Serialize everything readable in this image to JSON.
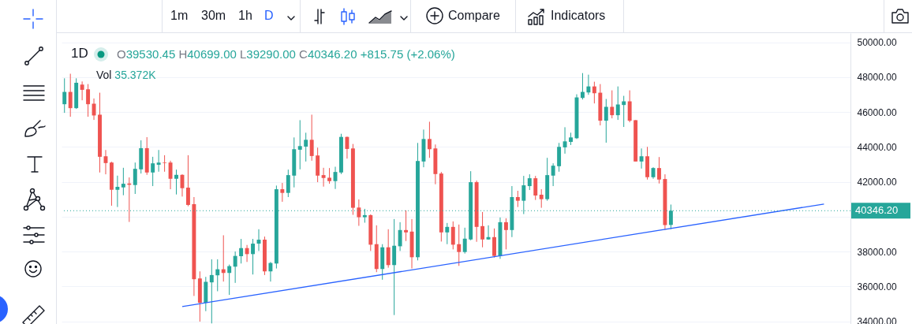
{
  "chart_data": {
    "type": "candlestick",
    "title": "1D",
    "subtitle": "O39530.45 H40699.00 L39290.00 C40346.20 +815.75 (+2.06%)",
    "annotations": [
      "Vol 35.372K",
      "1m",
      "30m",
      "1h",
      "D",
      "Compare",
      "Indicators"
    ],
    "categories": [
      null,
      null,
      null,
      null,
      null,
      null,
      null,
      null,
      null,
      null,
      null,
      null,
      null,
      null,
      null,
      null,
      null,
      null,
      null,
      null,
      null,
      null,
      null,
      null,
      null,
      null,
      null,
      null,
      null,
      null,
      null,
      null,
      null,
      null,
      null,
      null,
      null,
      null,
      null,
      null,
      null,
      null,
      null,
      null,
      null,
      null,
      null,
      null,
      null,
      null,
      null,
      null,
      null,
      null,
      null,
      null,
      null,
      null,
      null,
      null,
      null,
      null,
      null,
      null,
      null,
      null,
      null,
      null,
      null,
      null,
      null,
      null,
      null,
      null,
      null,
      null,
      null,
      null,
      null,
      null,
      null,
      null,
      null,
      null,
      null,
      null,
      null,
      null,
      null,
      null,
      null,
      null,
      null,
      null,
      null,
      null,
      null,
      null,
      null,
      null,
      null,
      null,
      null,
      null,
      null,
      null,
      null,
      null,
      null,
      null,
      null,
      null,
      null,
      null,
      null,
      null,
      null,
      null,
      null,
      null,
      null,
      null,
      null,
      null,
      null,
      null,
      null,
      null,
      null,
      null,
      null,
      null,
      null,
      null
    ],
    "ohlc": [
      [
        46453,
        47938,
        45958,
        47158
      ],
      [
        47158,
        48200,
        45733,
        46228
      ],
      [
        46228,
        47938,
        46183,
        47683
      ],
      [
        47578,
        47758,
        46678,
        47278
      ],
      [
        47308,
        47608,
        45733,
        46453
      ],
      [
        46483,
        46783,
        45553,
        45808
      ],
      [
        45853,
        47113,
        42538,
        43438
      ],
      [
        43468,
        43828,
        42433,
        43078
      ],
      [
        43108,
        43153,
        40633,
        41548
      ],
      [
        41548,
        42358,
        40558,
        41713
      ],
      [
        41683,
        42808,
        41233,
        41893
      ],
      [
        41908,
        42253,
        39703,
        41833
      ],
      [
        41818,
        43108,
        41308,
        42748
      ],
      [
        42718,
        44383,
        42478,
        43933
      ],
      [
        43933,
        44563,
        42403,
        42538
      ],
      [
        42538,
        43438,
        41758,
        43063
      ],
      [
        42983,
        43828,
        42583,
        43108
      ],
      [
        43108,
        43528,
        42583,
        43078
      ],
      [
        43108,
        43213,
        41578,
        42178
      ],
      [
        42178,
        42703,
        41278,
        42403
      ],
      [
        42403,
        42433,
        41158,
        41638
      ],
      [
        41668,
        43528,
        40603,
        40678
      ],
      [
        40723,
        41128,
        35458,
        36418
      ],
      [
        36463,
        36868,
        33988,
        35068
      ],
      [
        35068,
        36553,
        34588,
        36268
      ],
      [
        36238,
        37558,
        33883,
        36658
      ],
      [
        36643,
        37558,
        35728,
        36988
      ],
      [
        36988,
        38938,
        36283,
        36778
      ],
      [
        36778,
        37258,
        35518,
        37168
      ],
      [
        37138,
        38008,
        36208,
        37753
      ],
      [
        37738,
        38728,
        37318,
        38203
      ],
      [
        38203,
        38383,
        37408,
        37858
      ],
      [
        37858,
        38728,
        36688,
        38458
      ],
      [
        38458,
        39283,
        38038,
        38683
      ],
      [
        38683,
        38863,
        36658,
        36868
      ],
      [
        36868,
        37408,
        36283,
        37348
      ],
      [
        37318,
        41788,
        37033,
        41578
      ],
      [
        41578,
        41938,
        40858,
        41368
      ],
      [
        41368,
        42703,
        41128,
        42388
      ],
      [
        42358,
        44548,
        41683,
        43873
      ],
      [
        43843,
        45538,
        42718,
        44053
      ],
      [
        44023,
        44818,
        43168,
        44413
      ],
      [
        44413,
        45853,
        43213,
        43483
      ],
      [
        43513,
        43963,
        41983,
        42358
      ],
      [
        42388,
        42808,
        41728,
        42223
      ],
      [
        42238,
        42793,
        41893,
        42043
      ],
      [
        42043,
        42868,
        41593,
        42568
      ],
      [
        42538,
        44758,
        42448,
        44578
      ],
      [
        44578,
        44593,
        43333,
        43888
      ],
      [
        43918,
        44173,
        40108,
        40513
      ],
      [
        40528,
        40993,
        39478,
        39973
      ],
      [
        39973,
        40453,
        39658,
        40093
      ],
      [
        40093,
        40138,
        38038,
        38398
      ],
      [
        38428,
        39508,
        36823,
        37003
      ],
      [
        37003,
        38428,
        36388,
        38248
      ],
      [
        38248,
        39283,
        37078,
        37228
      ],
      [
        37228,
        39868,
        34363,
        38338
      ],
      [
        38308,
        39688,
        38038,
        39238
      ],
      [
        39238,
        40363,
        38608,
        39103
      ],
      [
        39148,
        39868,
        37033,
        37678
      ],
      [
        37678,
        44233,
        37498,
        43198
      ],
      [
        43168,
        44998,
        42838,
        44458
      ],
      [
        44458,
        45448,
        43378,
        43873
      ],
      [
        43918,
        44143,
        41863,
        42448
      ],
      [
        42478,
        42568,
        38578,
        39103
      ],
      [
        39103,
        39643,
        38428,
        39418
      ],
      [
        39418,
        39733,
        38128,
        38398
      ],
      [
        38428,
        39553,
        37183,
        37978
      ],
      [
        37978,
        39373,
        37888,
        38743
      ],
      [
        38698,
        42613,
        38650,
        41983
      ],
      [
        41983,
        42073,
        38563,
        39418
      ],
      [
        39463,
        40273,
        38248,
        38698
      ],
      [
        38698,
        39508,
        38680,
        38833
      ],
      [
        38833,
        39328,
        37663,
        37753
      ],
      [
        37753,
        39958,
        37588,
        39688
      ],
      [
        39688,
        39913,
        38128,
        39238
      ],
      [
        39238,
        41758,
        38833,
        41128
      ],
      [
        41128,
        41488,
        40558,
        40918
      ],
      [
        40918,
        42343,
        40153,
        41803
      ],
      [
        41758,
        42433,
        41533,
        42208
      ],
      [
        42208,
        42343,
        40963,
        41218
      ],
      [
        41263,
        41578,
        40513,
        41008
      ],
      [
        41008,
        43378,
        40918,
        42388
      ],
      [
        42358,
        43063,
        41758,
        42928
      ],
      [
        42898,
        44233,
        42583,
        44008
      ],
      [
        43978,
        45133,
        43618,
        44323
      ],
      [
        44293,
        44818,
        44113,
        44548
      ],
      [
        44503,
        47023,
        44458,
        46843
      ],
      [
        46813,
        48238,
        46723,
        47158
      ],
      [
        47128,
        48148,
        46993,
        47473
      ],
      [
        47473,
        47743,
        46498,
        47083
      ],
      [
        47113,
        47608,
        45238,
        45508
      ],
      [
        45508,
        46753,
        44248,
        46303
      ],
      [
        46303,
        47248,
        45643,
        45823
      ],
      [
        45823,
        47473,
        45553,
        46438
      ],
      [
        46408,
        46933,
        45148,
        46618
      ],
      [
        46618,
        47248,
        45418,
        45508
      ],
      [
        45538,
        45538,
        43168,
        43168
      ],
      [
        43168,
        43918,
        42763,
        43468
      ],
      [
        43468,
        44008,
        42133,
        42268
      ],
      [
        42268,
        42838,
        42178,
        42793
      ],
      [
        42793,
        43423,
        41908,
        42133
      ],
      [
        42163,
        42433,
        39253,
        39523
      ],
      [
        39530.45,
        40699,
        39290,
        40346.2
      ],
      null,
      null,
      null,
      null,
      null,
      null,
      null,
      null,
      null,
      null,
      null,
      null,
      null,
      null,
      null,
      null,
      null,
      null,
      null,
      null,
      null,
      null,
      null,
      null,
      null,
      null,
      null,
      null,
      null,
      null
    ],
    "colors": [
      "#26a69a",
      "#ef5350",
      "#26a69a",
      "#ef5350",
      "#ef5350",
      "#ef5350",
      "#ef5350",
      "#ef5350",
      "#ef5350",
      "#26a69a",
      "#26a69a",
      "#ef5350",
      "#26a69a",
      "#26a69a",
      "#ef5350",
      "#26a69a",
      "#26a69a",
      "#ef5350",
      "#ef5350",
      "#26a69a",
      "#ef5350",
      "#ef5350",
      "#ef5350",
      "#ef5350",
      "#26a69a",
      "#26a69a",
      "#26a69a",
      "#ef5350",
      "#26a69a",
      "#26a69a",
      "#26a69a",
      "#ef5350",
      "#26a69a",
      "#26a69a",
      "#ef5350",
      "#26a69a",
      "#26a69a",
      "#ef5350",
      "#26a69a",
      "#26a69a",
      "#26a69a",
      "#26a69a",
      "#ef5350",
      "#ef5350",
      "#ef5350",
      "#ef5350",
      "#26a69a",
      "#26a69a",
      "#ef5350",
      "#ef5350",
      "#ef5350",
      "#26a69a",
      "#ef5350",
      "#ef5350",
      "#26a69a",
      "#ef5350",
      "#26a69a",
      "#26a69a",
      "#ef5350",
      "#ef5350",
      "#26a69a",
      "#26a69a",
      "#ef5350",
      "#ef5350",
      "#ef5350",
      "#26a69a",
      "#ef5350",
      "#ef5350",
      "#26a69a",
      "#26a69a",
      "#ef5350",
      "#ef5350",
      "#26a69a",
      "#ef5350",
      "#26a69a",
      "#ef5350",
      "#26a69a",
      "#ef5350",
      "#26a69a",
      "#26a69a",
      "#ef5350",
      "#ef5350",
      "#26a69a",
      "#26a69a",
      "#26a69a",
      "#26a69a",
      "#26a69a",
      "#26a69a",
      "#26a69a",
      "#26a69a",
      "#ef5350",
      "#ef5350",
      "#26a69a",
      "#ef5350",
      "#26a69a",
      "#26a69a",
      "#ef5350",
      "#ef5350",
      "#26a69a",
      "#ef5350",
      "#26a69a",
      "#ef5350",
      "#ef5350",
      "#26a69a",
      null,
      null,
      null,
      null,
      null,
      null,
      null,
      null,
      null,
      null,
      null,
      null,
      null,
      null,
      null,
      null,
      null,
      null,
      null,
      null,
      null,
      null,
      null,
      null,
      null,
      null,
      null,
      null,
      null,
      null
    ],
    "series": [
      {
        "type": "line",
        "color": "#2962ff",
        "values": [
          null,
          null,
          null,
          null,
          null,
          null,
          null,
          null,
          null,
          null,
          null,
          null,
          null,
          null,
          null,
          null,
          null,
          null,
          null,
          null,
          34850,
          null,
          null,
          null,
          null,
          null,
          null,
          null,
          null,
          null,
          null,
          null,
          null,
          null,
          null,
          null,
          null,
          null,
          null,
          null,
          null,
          null,
          null,
          null,
          null,
          null,
          null,
          null,
          null,
          null,
          null,
          null,
          null,
          null,
          null,
          null,
          null,
          null,
          null,
          null,
          null,
          null,
          null,
          null,
          null,
          null,
          null,
          null,
          null,
          null,
          null,
          null,
          null,
          null,
          null,
          null,
          null,
          null,
          null,
          null,
          null,
          null,
          null,
          null,
          null,
          null,
          null,
          null,
          null,
          null,
          null,
          null,
          null,
          null,
          null,
          null,
          null,
          null,
          null,
          null,
          null,
          null,
          null,
          null,
          null,
          null,
          null,
          null,
          null,
          null,
          null,
          null,
          null,
          null,
          null,
          null,
          null,
          null,
          null,
          null,
          null,
          null,
          null,
          null,
          null,
          null,
          null,
          null,
          null,
          40730,
          null,
          null,
          null,
          null
        ]
      }
    ],
    "ylim": [
      33850,
      50530
    ],
    "yticks": [
      {
        "value": 34000,
        "label": "34000.00"
      },
      {
        "value": 36000,
        "label": "36000.00"
      },
      {
        "value": 38000,
        "label": "38000.00"
      },
      {
        "value": 40000,
        "label": null
      },
      {
        "value": 42000,
        "label": "42000.00"
      },
      {
        "value": 44000,
        "label": "44000.00"
      },
      {
        "value": 46000,
        "label": "46000.00"
      },
      {
        "value": 48000,
        "label": "48000.00"
      },
      {
        "value": 50000,
        "label": "50000.00"
      }
    ],
    "grid": "y",
    "tick_labels": "y",
    "ref_lines": [
      {
        "axis": "y",
        "value": 40346.2,
        "label": "40346.20",
        "color": "#26a69a",
        "line_style": "dotted"
      }
    ]
  }
}
